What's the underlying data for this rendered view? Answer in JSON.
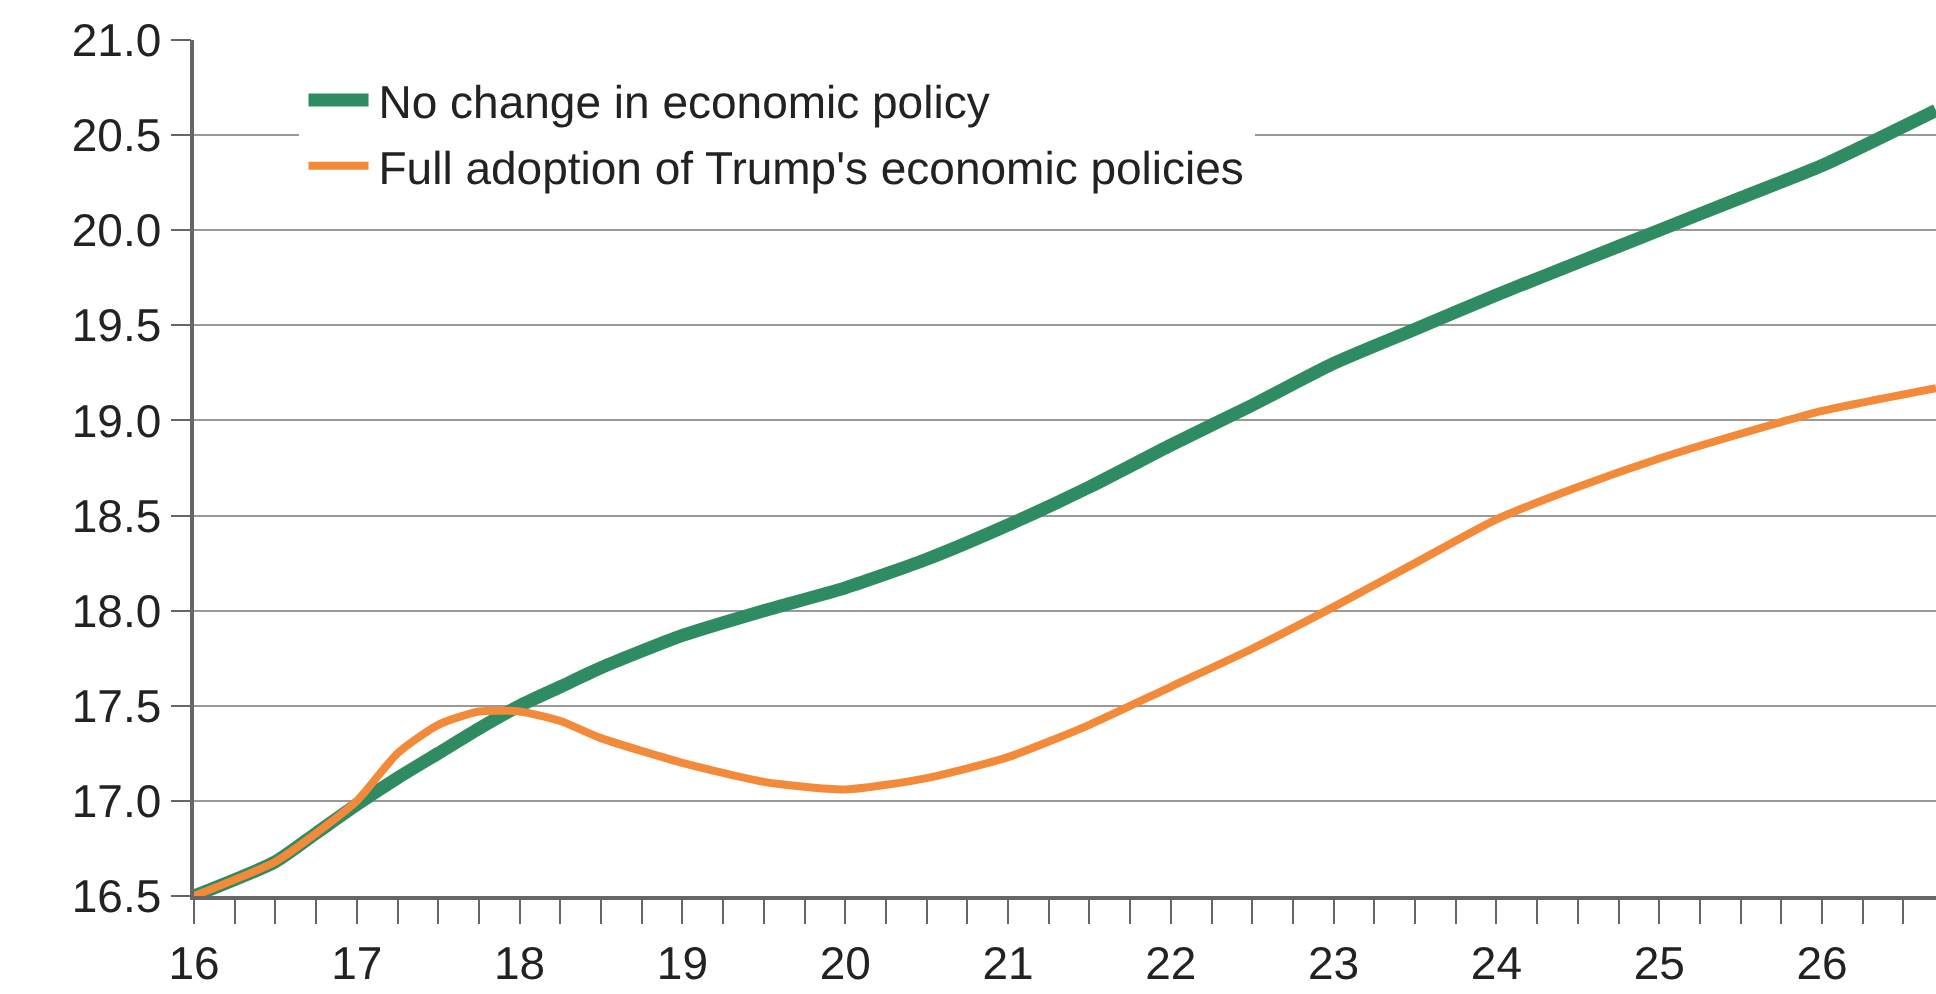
{
  "chart_data": {
    "type": "line",
    "xlim": [
      16,
      26.7
    ],
    "ylim": [
      16.5,
      21.0
    ],
    "xticks": [
      16,
      {
        "value": 16.25,
        "label": null
      },
      {
        "value": 16.5,
        "label": null
      },
      {
        "value": 16.75,
        "label": null
      },
      17,
      {
        "value": 17.25,
        "label": null
      },
      {
        "value": 17.5,
        "label": null
      },
      {
        "value": 17.75,
        "label": null
      },
      18,
      {
        "value": 18.25,
        "label": null
      },
      {
        "value": 18.5,
        "label": null
      },
      {
        "value": 18.75,
        "label": null
      },
      19,
      {
        "value": 19.25,
        "label": null
      },
      {
        "value": 19.5,
        "label": null
      },
      {
        "value": 19.75,
        "label": null
      },
      20,
      {
        "value": 20.25,
        "label": null
      },
      {
        "value": 20.5,
        "label": null
      },
      {
        "value": 20.75,
        "label": null
      },
      21,
      {
        "value": 21.25,
        "label": null
      },
      {
        "value": 21.5,
        "label": null
      },
      {
        "value": 21.75,
        "label": null
      },
      22,
      {
        "value": 22.25,
        "label": null
      },
      {
        "value": 22.5,
        "label": null
      },
      {
        "value": 22.75,
        "label": null
      },
      23,
      {
        "value": 23.25,
        "label": null
      },
      {
        "value": 23.5,
        "label": null
      },
      {
        "value": 23.75,
        "label": null
      },
      24,
      {
        "value": 24.25,
        "label": null
      },
      {
        "value": 24.5,
        "label": null
      },
      {
        "value": 24.75,
        "label": null
      },
      25,
      {
        "value": 25.25,
        "label": null
      },
      {
        "value": 25.5,
        "label": null
      },
      {
        "value": 25.75,
        "label": null
      },
      26,
      {
        "value": 26.25,
        "label": null
      },
      {
        "value": 26.5,
        "label": null
      }
    ],
    "yticks": [
      {
        "value": 16.5,
        "label": "16.5"
      },
      {
        "value": 17,
        "label": "17.0"
      },
      {
        "value": 17.5,
        "label": "17.5"
      },
      {
        "value": 18,
        "label": "18.0"
      },
      {
        "value": 18.5,
        "label": "18.5"
      },
      {
        "value": 19,
        "label": "19.0"
      },
      {
        "value": 19.5,
        "label": "19.5"
      },
      {
        "value": 20,
        "label": "20.0"
      },
      {
        "value": 20.5,
        "label": "20.5"
      },
      {
        "value": 21,
        "label": "21.0"
      }
    ],
    "grid": "y",
    "legend": "top left",
    "marker": "none",
    "line_style": "solid",
    "x": [
      16,
      16.5,
      16.75,
      17,
      17.25,
      17.5,
      17.75,
      18,
      18.25,
      18.5,
      19,
      19.5,
      20,
      20.5,
      21,
      21.5,
      22,
      22.5,
      23,
      23.5,
      24,
      24.5,
      25,
      25.5,
      26,
      26.7
    ],
    "series": [
      {
        "name": "No change in economic policy",
        "color": "#2e8b62",
        "values": [
          16.5,
          16.68,
          16.83,
          16.98,
          17.12,
          17.25,
          17.38,
          17.5,
          17.6,
          17.7,
          17.87,
          18.0,
          18.12,
          18.27,
          18.45,
          18.65,
          18.87,
          19.08,
          19.3,
          19.48,
          19.66,
          19.83,
          20.0,
          20.17,
          20.34,
          20.63
        ]
      },
      {
        "name": "Full adoption of Trump's economic policies",
        "color": "#f28a3a",
        "values": [
          16.5,
          16.68,
          16.83,
          17.0,
          17.25,
          17.4,
          17.47,
          17.47,
          17.42,
          17.33,
          17.2,
          17.1,
          17.06,
          17.12,
          17.23,
          17.4,
          17.6,
          17.8,
          18.02,
          18.25,
          18.48,
          18.65,
          18.8,
          18.93,
          19.05,
          19.17
        ]
      }
    ]
  }
}
